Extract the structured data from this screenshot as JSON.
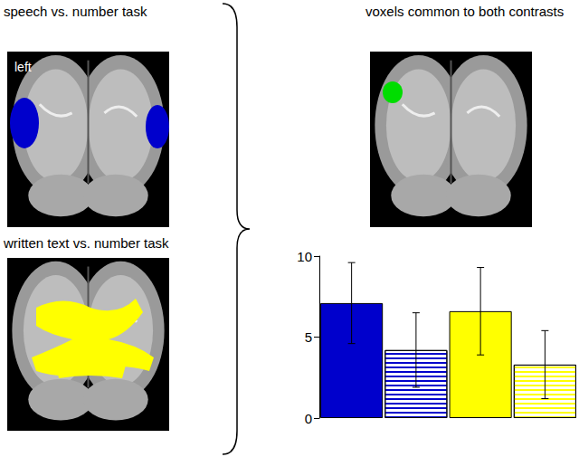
{
  "panels": {
    "top_left": {
      "title": "speech vs. number task",
      "side_label": "left"
    },
    "bottom_left": {
      "title": "written text vs. number task"
    },
    "top_right": {
      "title": "voxels common to both contrasts"
    }
  },
  "chart_data": {
    "type": "bar",
    "categories": [
      null,
      null,
      null,
      null
    ],
    "values": [
      7.1,
      4.2,
      6.6,
      3.3
    ],
    "errors": [
      2.5,
      2.3,
      2.7,
      2.1
    ],
    "colors": [
      "#0000cc",
      "#0000cc",
      "#ffff00",
      "#ffff00"
    ],
    "ylim": [
      0,
      10
    ],
    "yticks": [
      0,
      5,
      10
    ],
    "grid": false
  }
}
